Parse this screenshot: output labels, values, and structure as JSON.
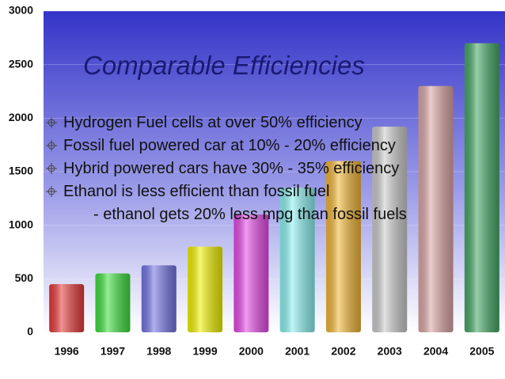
{
  "chart_data": {
    "type": "bar",
    "categories": [
      "1996",
      "1997",
      "1998",
      "1999",
      "2000",
      "2001",
      "2002",
      "2003",
      "2004",
      "2005"
    ],
    "values": [
      450,
      550,
      625,
      800,
      1100,
      1350,
      1600,
      1920,
      2300,
      2700
    ],
    "colors": [
      "#e83a3a",
      "#3ee03e",
      "#7474e6",
      "#f2f200",
      "#e64ae6",
      "#8cf2f2",
      "#f2b637",
      "#cccccc",
      "#dca6a6",
      "#45a865"
    ],
    "ylim": [
      0,
      3000
    ],
    "yticks": [
      0,
      500,
      1000,
      1500,
      2000,
      2500,
      3000
    ],
    "grid": true
  },
  "slide": {
    "title": "Comparable Efficiencies",
    "bullets": [
      "Hydrogen Fuel cells at over 50% efficiency",
      "Fossil fuel powered car at 10% - 20% efficiency",
      "Hybrid powered cars have 30% - 35% efficiency",
      "Ethanol is less efficient than fossil fuel"
    ],
    "sub_bullet": "- ethanol gets 20% less mpg than fossil fuels"
  }
}
